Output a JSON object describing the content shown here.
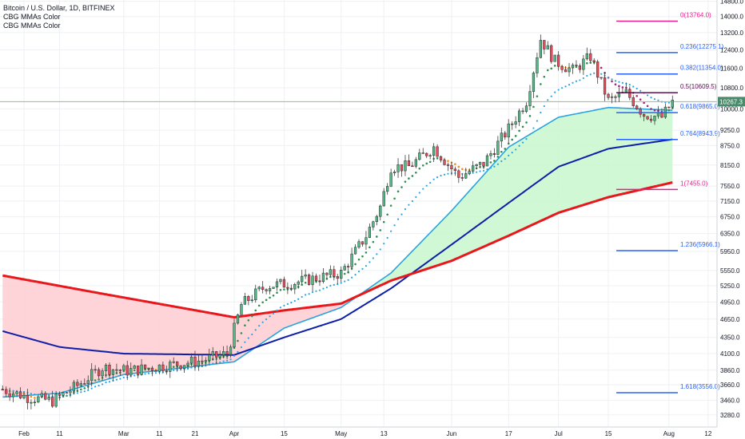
{
  "header": {
    "title": "Bitcoin / U.S. Dollar, 1D, BITFINEX",
    "indicator1": "CBG MMAs Color",
    "indicator2": "CBG MMAs Color"
  },
  "chart_data": {
    "type": "candlestick",
    "title": "Bitcoin / U.S. Dollar, 1D, BITFINEX",
    "xlabel": "",
    "ylabel": "",
    "ylim": [
      3200,
      14800
    ],
    "y_scale": "log",
    "grid": true,
    "x_ticks": [
      "Feb",
      "11",
      "Mar",
      "11",
      "21",
      "Apr",
      "15",
      "May",
      "13",
      "Jun",
      "17",
      "Jul",
      "15",
      "Aug",
      "12"
    ],
    "y_ticks": [
      14800,
      14000,
      13200,
      12400,
      11600,
      10800,
      10000,
      9250,
      8750,
      8150,
      7550,
      7150,
      6750,
      6350,
      5950,
      5550,
      5250,
      4950,
      4650,
      4350,
      4100,
      3860,
      3660,
      3460,
      3280
    ],
    "current_price": 10267.3,
    "current_price_label": "10267.3",
    "series": [
      {
        "name": "",
        "kind": "price_close",
        "x": [
          "2019-01-26",
          "2019-02-02",
          "2019-02-09",
          "2019-02-16",
          "2019-02-23",
          "2019-03-02",
          "2019-03-09",
          "2019-03-16",
          "2019-03-23",
          "2019-03-30",
          "2019-04-03",
          "2019-04-10",
          "2019-04-17",
          "2019-04-24",
          "2019-05-01",
          "2019-05-08",
          "2019-05-12",
          "2019-05-15",
          "2019-05-20",
          "2019-05-27",
          "2019-06-03",
          "2019-06-10",
          "2019-06-17",
          "2019-06-22",
          "2019-06-26",
          "2019-06-30",
          "2019-07-05",
          "2019-07-10",
          "2019-07-15",
          "2019-07-20",
          "2019-07-25",
          "2019-07-30",
          "2019-08-02"
        ],
        "y": [
          3600,
          3500,
          3450,
          3650,
          3900,
          3850,
          3900,
          3950,
          4000,
          4100,
          4900,
          5250,
          5300,
          5400,
          5500,
          6300,
          7000,
          8100,
          8100,
          8700,
          7800,
          8200,
          9300,
          10300,
          12900,
          11900,
          11500,
          12100,
          10300,
          10600,
          9800,
          9700,
          10267
        ]
      },
      {
        "name": "",
        "kind": "ma_red",
        "x": [
          "2019-01-26",
          "2019-02-23",
          "2019-03-23",
          "2019-04-01",
          "2019-04-15",
          "2019-05-01",
          "2019-05-15",
          "2019-06-01",
          "2019-06-17",
          "2019-07-01",
          "2019-07-15",
          "2019-08-02"
        ],
        "y": [
          5450,
          5100,
          4780,
          4680,
          4800,
          4920,
          5350,
          5750,
          6300,
          6850,
          7250,
          7650
        ]
      },
      {
        "name": "",
        "kind": "ma_darkblue",
        "x": [
          "2019-01-26",
          "2019-02-11",
          "2019-03-01",
          "2019-04-01",
          "2019-04-15",
          "2019-05-01",
          "2019-05-15",
          "2019-06-01",
          "2019-06-17",
          "2019-07-01",
          "2019-07-15",
          "2019-08-02"
        ],
        "y": [
          4450,
          4200,
          4100,
          4080,
          4350,
          4650,
          5200,
          6100,
          7100,
          8100,
          8650,
          8950
        ]
      },
      {
        "name": "",
        "kind": "ma_lightblue",
        "x": [
          "2019-01-26",
          "2019-02-11",
          "2019-03-01",
          "2019-04-01",
          "2019-04-15",
          "2019-05-01",
          "2019-05-15",
          "2019-06-01",
          "2019-06-17",
          "2019-07-01",
          "2019-07-15",
          "2019-08-02"
        ],
        "y": [
          3500,
          3550,
          3800,
          3980,
          4500,
          4850,
          5500,
          6900,
          8700,
          9700,
          10050,
          9950
        ]
      }
    ],
    "fib_levels": [
      {
        "label": "0(13764.0)",
        "value": 13764.0,
        "color": "#e91e8c"
      },
      {
        "label": "0.236(12275.1)",
        "value": 12275.1,
        "color": "#2962ff"
      },
      {
        "label": "0.382(11354.0)",
        "value": 11354.0,
        "color": "#2962ff"
      },
      {
        "label": "0.5(10609.5)",
        "value": 10609.5,
        "color": "#5d0e4e"
      },
      {
        "label": "0.618(9865.0)",
        "value": 9865.0,
        "color": "#2962ff"
      },
      {
        "label": "0.764(8943.9)",
        "value": 8943.9,
        "color": "#2962ff"
      },
      {
        "label": "1(7455.0)",
        "value": 7455.0,
        "color": "#e91e8c"
      },
      {
        "label": "1.236(5966.1)",
        "value": 5966.1,
        "color": "#2962ff"
      },
      {
        "label": "1.618(3556.0)",
        "value": 3556.0,
        "color": "#2962ff"
      }
    ],
    "colors": {
      "up": "#53b987",
      "down": "#eb4d5c",
      "ma_red": "#e8171b",
      "ma_darkblue": "#0d1ea8",
      "ma_lightblue": "#29a3df",
      "fill_red": "#ffcdd2",
      "fill_green": "#c8f7cd",
      "price_line": "#8fbc8f",
      "price_label_bg": "#4a8b6b"
    }
  }
}
